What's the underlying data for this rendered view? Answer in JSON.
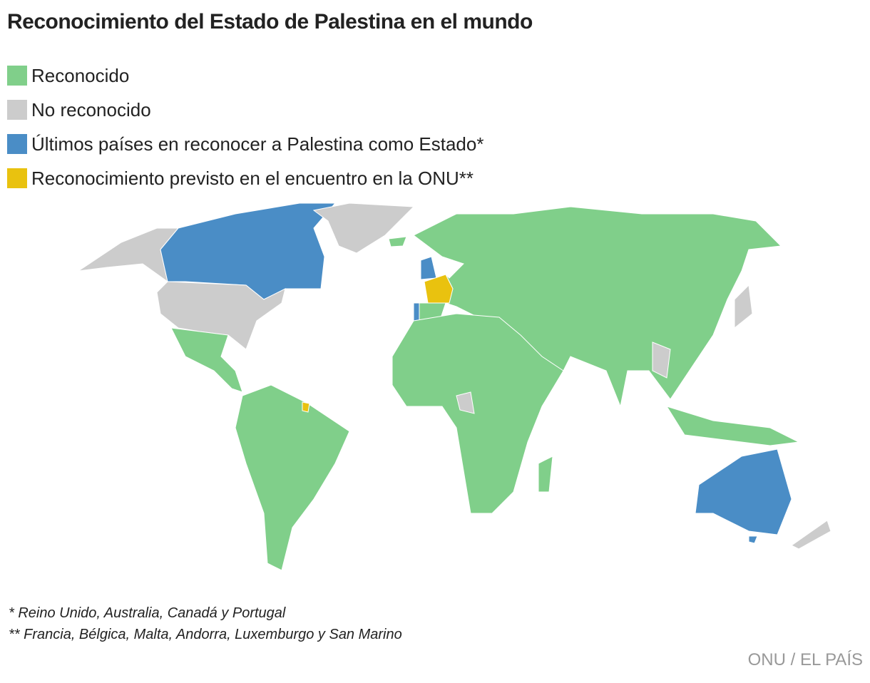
{
  "header": {
    "title": "Reconocimiento del Estado de Palestina en el mundo"
  },
  "legend": {
    "items": [
      {
        "label": "Reconocido",
        "color": "#80cf8a"
      },
      {
        "label": "No reconocido",
        "color": "#cccccc"
      },
      {
        "label": "Últimos países en reconocer a Palestina como Estado*",
        "color": "#4a8dc6"
      },
      {
        "label": "Reconocimiento previsto en el encuentro en la ONU**",
        "color": "#e9c20f"
      }
    ]
  },
  "footnotes": [
    "* Reino Unido, Australia, Canadá y Portugal",
    "** Francia, Bélgica, Malta, Andorra, Luxemburgo y San Marino"
  ],
  "source": "ONU / EL PAÍS"
}
